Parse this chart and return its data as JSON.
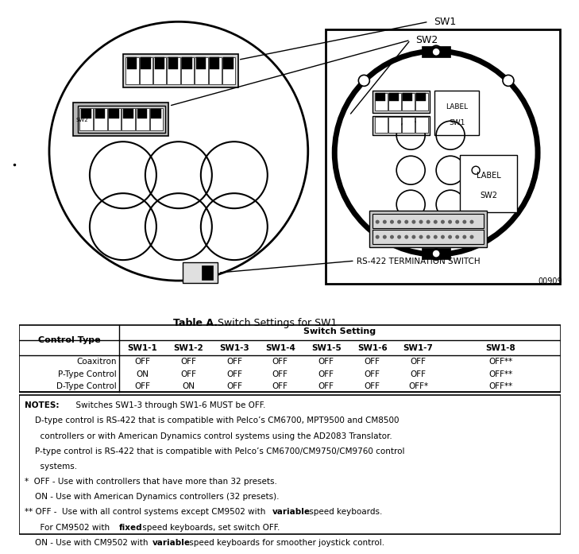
{
  "title_bold": "Table A.",
  "title_rest": "  Switch Settings for SW1",
  "col_headers": [
    "Control Type",
    "SW1-1",
    "SW1-2",
    "SW1-3",
    "SW1-4",
    "SW1-5",
    "SW1-6",
    "SW1-7",
    "SW1-8"
  ],
  "switch_setting_label": "Switch Setting",
  "rows": [
    [
      "Coaxitron",
      "OFF",
      "OFF",
      "OFF",
      "OFF",
      "OFF",
      "OFF",
      "OFF",
      "OFF**"
    ],
    [
      "P-Type Control",
      "ON",
      "OFF",
      "OFF",
      "OFF",
      "OFF",
      "OFF",
      "OFF",
      "OFF**"
    ],
    [
      "D-Type Control",
      "OFF",
      "ON",
      "OFF",
      "OFF",
      "OFF",
      "OFF",
      "OFF*",
      "OFF**"
    ]
  ],
  "sw1_label": "SW1",
  "sw2_label": "SW2",
  "rs422_label": "RS-422 TERMINATION SWITCH",
  "part_num": "00909",
  "note_line0_bold": "NOTES:",
  "note_line0_rest": "  Switches SW1-3 through SW1-6 MUST be OFF.",
  "note_lines_plain": [
    "    D-type control is RS-422 that is compatible with Pelco’s CM6700, MPT9500 and CM8500",
    "      controllers or with American Dynamics control systems using the AD2083 Translator.",
    "    P-type control is RS-422 that is compatible with Pelco’s CM6700/CM9750/CM9760 control",
    "      systems.",
    "*  OFF - Use with controllers that have more than 32 presets.",
    "    ON - Use with American Dynamics controllers (32 presets)."
  ],
  "note_bold_lines": [
    {
      "pre": "** OFF -  Use with all control systems except CM9502 with ",
      "bold": "variable",
      "post": " speed keyboards."
    },
    {
      "pre": "      For CM9502 with ",
      "bold": "fixed",
      "post": " speed keyboards, set switch OFF."
    },
    {
      "pre": "    ON - Use with CM9502 with ",
      "bold": "variable",
      "post": " speed keyboards for smoother joystick control."
    }
  ]
}
